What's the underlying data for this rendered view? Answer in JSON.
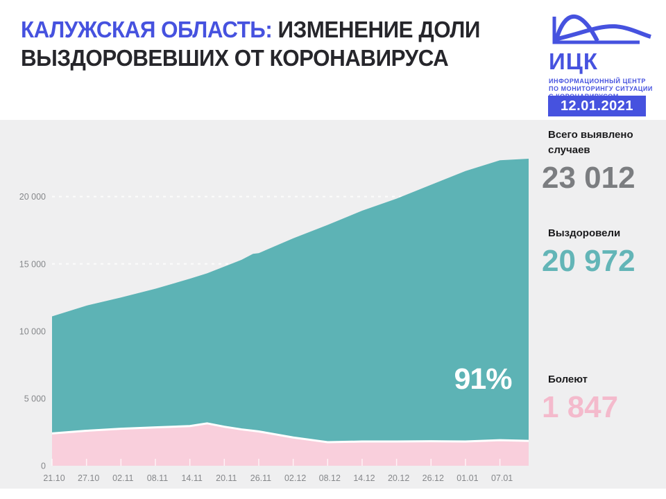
{
  "header": {
    "title_highlight": "КАЛУЖСКАЯ ОБЛАСТЬ:",
    "title_rest": " ИЗМЕНЕНИЕ ДОЛИ",
    "title_line2": "ВЫЗДОРОВЕВШИХ ОТ КОРОНАВИРУСА",
    "date_badge": "12.01.2021",
    "logo": {
      "abbr": "ИЦК",
      "icon": "epidemic-curves-icon",
      "subtitle_line1": "ИНФОРМАЦИОННЫЙ ЦЕНТР",
      "subtitle_line2": "ПО МОНИТОРИНГУ СИТУАЦИИ",
      "subtitle_line3": "С КОРОНАВИРУСОМ"
    }
  },
  "colors": {
    "brand_blue": "#4652df",
    "title_dark": "#26262b",
    "panel_gray": "#efeff0",
    "recovered_teal": "#5db3b5",
    "sick_pink": "#f9cfdc",
    "stat_total_gray": "#7b7d80",
    "stat_recovered_teal": "#63b5b7",
    "stat_sick_pink": "#f4bacc",
    "axis_text_gray": "#85878a",
    "annotation_white": "#ffffff"
  },
  "stats": [
    {
      "label1": "Всего выявлено",
      "label2": "случаев",
      "value": "23 012"
    },
    {
      "label1": "Выздоровели",
      "label2": "",
      "value": "20 972"
    },
    {
      "label1": "Болеют",
      "label2": "",
      "value": "1 847"
    }
  ],
  "chart_data": {
    "type": "area",
    "stacked": true,
    "annotation": "91%",
    "x_tick_labels": [
      "21.10",
      "27.10",
      "02.11",
      "08.11",
      "14.11",
      "20.11",
      "26.11",
      "02.12",
      "08.12",
      "14.12",
      "20.12",
      "26.12",
      "01.01",
      "07.01"
    ],
    "x_tick_days": [
      0,
      6,
      12,
      18,
      24,
      30,
      36,
      42,
      48,
      54,
      60,
      66,
      72,
      78
    ],
    "x_domain_days": [
      0,
      83
    ],
    "y_ticks": [
      0,
      5000,
      10000,
      15000,
      20000
    ],
    "y_tick_labels": [
      "0",
      "5 000",
      "10 000",
      "15 000",
      "20 000"
    ],
    "ylim": [
      0,
      25700
    ],
    "grid": "dashed-white-horizontal",
    "legend": "none",
    "days": [
      0,
      6,
      12,
      18,
      24,
      27,
      30,
      33,
      35,
      36,
      42,
      48,
      54,
      60,
      66,
      72,
      78,
      83
    ],
    "series": [
      {
        "name": "Болеют",
        "color": "#f9cfdc",
        "values": [
          2400,
          2600,
          2750,
          2850,
          2950,
          3150,
          2900,
          2700,
          2600,
          2550,
          2100,
          1750,
          1800,
          1800,
          1820,
          1800,
          1900,
          1847
        ]
      },
      {
        "name": "Выздоровели",
        "color": "#5db3b5",
        "values": [
          8700,
          9300,
          9750,
          10300,
          10950,
          11150,
          11900,
          12600,
          13150,
          13250,
          14800,
          16150,
          17150,
          18050,
          19060,
          20100,
          20800,
          20972
        ]
      }
    ]
  }
}
